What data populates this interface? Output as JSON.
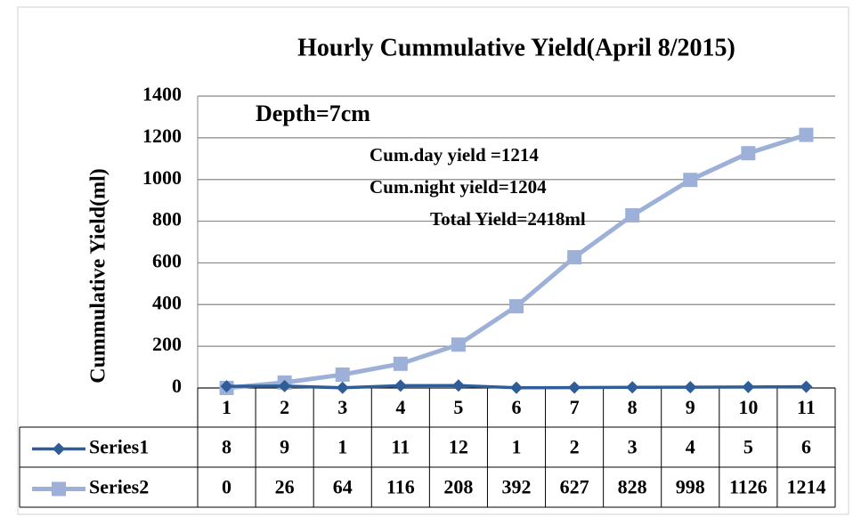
{
  "chart_data": {
    "type": "line",
    "title": "Hourly Cummulative Yield(April 8/2015)",
    "y_label": "Cummulative  Yield(ml)",
    "annotations": [
      "Depth=7cm",
      "Cum.day  yield  =1214",
      "Cum.night  yield=1204",
      "Total Yield=2418ml"
    ],
    "categories": [
      "1",
      "2",
      "3",
      "4",
      "5",
      "6",
      "7",
      "8",
      "9",
      "10",
      "11"
    ],
    "series": [
      {
        "name": "Series1",
        "color": "#2e5d98",
        "marker": "diamond",
        "values": [
          8,
          9,
          1,
          11,
          12,
          1,
          2,
          3,
          4,
          5,
          6
        ]
      },
      {
        "name": "Series2",
        "color": "#9db1d8",
        "marker": "square",
        "values": [
          0,
          26,
          64,
          116,
          208,
          392,
          627,
          828,
          998,
          1126,
          1214
        ]
      }
    ],
    "ylim": [
      0,
      1400
    ],
    "yticks": [
      0,
      200,
      400,
      600,
      800,
      1000,
      1200,
      1400
    ],
    "grid": true,
    "data_table": true
  }
}
